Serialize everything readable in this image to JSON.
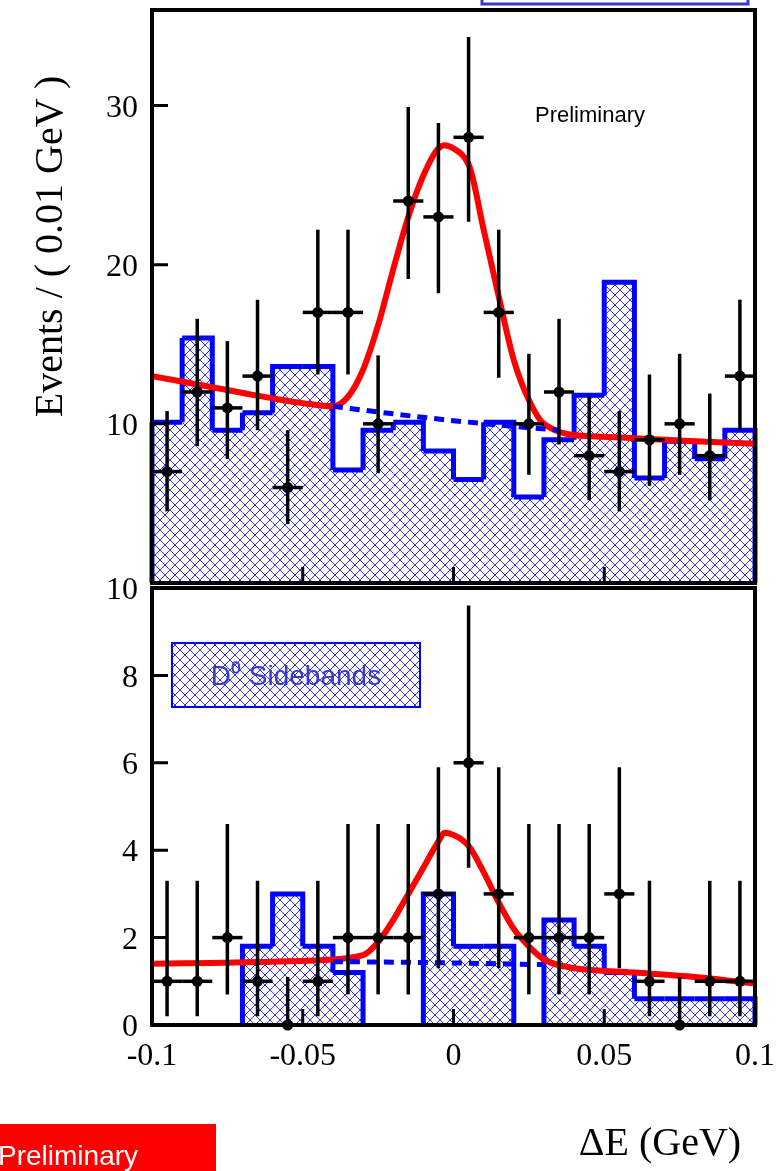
{
  "chart_data": [
    {
      "type": "scatter",
      "ylabel": "Events / ( 0.01 GeV )",
      "xlim": [
        -0.1,
        0.1
      ],
      "xticks": [
        -0.1,
        -0.05,
        0,
        0.05,
        0.1
      ],
      "ylim": [
        0,
        36
      ],
      "yticks": [
        10,
        20,
        30
      ],
      "tick_labels": "y",
      "annotations": [
        "Preliminary"
      ],
      "series": [
        {
          "type": "histogram",
          "color": "#0000ff",
          "bins": [
            -0.1,
            -0.09,
            -0.08,
            -0.07,
            -0.06,
            -0.05,
            -0.04,
            -0.03,
            -0.02,
            -0.01,
            0,
            0.01,
            0.02,
            0.03,
            0.04,
            0.05,
            0.06,
            0.07,
            0.08,
            0.09,
            0.1
          ],
          "values": [
            10.1,
            15.4,
            9.6,
            10.7,
            13.6,
            13.6,
            7.1,
            9.6,
            10.1,
            8.3,
            6.5,
            10.1,
            5.4,
            9.0,
            11.8,
            18.9,
            6.6,
            8.9,
            7.8,
            9.6
          ]
        },
        {
          "type": "scatter",
          "color": "#000000",
          "marker": "circle",
          "x": [
            -0.095,
            -0.085,
            -0.075,
            -0.065,
            -0.055,
            -0.045,
            -0.035,
            -0.025,
            -0.015,
            -0.005,
            0.005,
            0.015,
            0.025,
            0.035,
            0.045,
            0.055,
            0.065,
            0.075,
            0.085,
            0.095
          ],
          "values": [
            7,
            12,
            11,
            13,
            6,
            17,
            17,
            10,
            24,
            23,
            28,
            17,
            10,
            12,
            8,
            7,
            9,
            10,
            8,
            13
          ],
          "errors": [
            [
              4.5,
              10.8
            ],
            [
              8.6,
              16.6
            ],
            [
              7.8,
              15.2
            ],
            [
              9.6,
              17.8
            ],
            [
              3.7,
              9.6
            ],
            [
              13.1,
              22.2
            ],
            [
              13.1,
              22.2
            ],
            [
              6.9,
              14.3
            ],
            [
              19.1,
              29.9
            ],
            [
              18.2,
              28.9
            ],
            [
              22.7,
              34.3
            ],
            [
              12.9,
              22.2
            ],
            [
              6.8,
              14.4
            ],
            [
              8.7,
              16.6
            ],
            [
              5.2,
              11.7
            ],
            [
              4.5,
              10.8
            ],
            [
              6.1,
              13.1
            ],
            [
              6.8,
              14.4
            ],
            [
              5.2,
              11.9
            ],
            [
              9.6,
              17.8
            ]
          ],
          "xerrors": [
            0.005,
            0.005,
            0.005,
            0.005,
            0.005,
            0.005,
            0.005,
            0.005,
            0.005,
            0.005,
            0.005,
            0.005,
            0.005,
            0.005,
            0.005,
            0.005,
            0.005,
            0.005,
            0.005,
            0.005
          ]
        },
        {
          "type": "line",
          "color": "#ff0000",
          "x": [
            -0.1,
            -0.08,
            -0.06,
            -0.05,
            -0.04,
            -0.035,
            -0.03,
            -0.025,
            -0.02,
            -0.015,
            -0.01,
            -0.005,
            -0.003,
            0,
            0.005,
            0.01,
            0.015,
            0.02,
            0.025,
            0.03,
            0.04,
            0.06,
            0.08,
            0.1
          ],
          "values": [
            13.0,
            12.3,
            11.6,
            11.3,
            11.1,
            11.7,
            13.4,
            16.2,
            19.7,
            23.0,
            25.6,
            27.3,
            27.5,
            27.3,
            26.3,
            22.2,
            18.0,
            14.0,
            11.5,
            10.0,
            9.3,
            9.1,
            8.9,
            8.75
          ]
        },
        {
          "type": "line",
          "color": "#0000ff",
          "line_style": "dashed",
          "x": [
            -0.04,
            0,
            0.035
          ],
          "values": [
            11.1,
            10.2,
            9.6
          ]
        }
      ]
    },
    {
      "type": "scatter",
      "xlabel": "ΔE (GeV)",
      "xlim": [
        -0.1,
        0.1
      ],
      "xticks": [
        -0.1,
        -0.05,
        0,
        0.05,
        0.1
      ],
      "ylim": [
        0,
        10
      ],
      "yticks": [
        0,
        2,
        4,
        6,
        8,
        10
      ],
      "legend": "top left",
      "annotations": [
        "Preliminary"
      ],
      "series": [
        {
          "type": "histogram",
          "name": "D⁰ Sidebands",
          "color": "#0000ff",
          "bins": [
            -0.1,
            -0.09,
            -0.08,
            -0.07,
            -0.06,
            -0.05,
            -0.04,
            -0.03,
            -0.02,
            -0.01,
            0,
            0.01,
            0.02,
            0.03,
            0.04,
            0.05,
            0.06,
            0.07,
            0.08,
            0.09,
            0.1
          ],
          "values": [
            0,
            0,
            0,
            1.8,
            3.0,
            1.8,
            1.2,
            0,
            0,
            3.0,
            1.8,
            1.8,
            0,
            2.4,
            1.8,
            1.2,
            0.6,
            0.6,
            0.6,
            0.6
          ]
        },
        {
          "type": "scatter",
          "color": "#000000",
          "marker": "circle",
          "x": [
            -0.095,
            -0.085,
            -0.075,
            -0.065,
            -0.055,
            -0.045,
            -0.035,
            -0.025,
            -0.015,
            -0.005,
            0.005,
            0.015,
            0.025,
            0.035,
            0.045,
            0.055,
            0.065,
            0.075,
            0.085,
            0.095
          ],
          "values": [
            1,
            1,
            2,
            1,
            0,
            1,
            2,
            2,
            2,
            3,
            6,
            3,
            2,
            2,
            2,
            3,
            1,
            0,
            1,
            1
          ],
          "errors": [
            [
              0.2,
              3.3
            ],
            [
              0.2,
              3.3
            ],
            [
              0.7,
              4.6
            ],
            [
              0.2,
              3.3
            ],
            [
              0,
              1.1
            ],
            [
              0.2,
              3.3
            ],
            [
              0.7,
              4.6
            ],
            [
              0.7,
              4.6
            ],
            [
              0.7,
              4.6
            ],
            [
              1.3,
              5.9
            ],
            [
              3.6,
              9.6
            ],
            [
              1.3,
              5.9
            ],
            [
              0.7,
              4.6
            ],
            [
              0.7,
              4.6
            ],
            [
              0.7,
              4.6
            ],
            [
              1.3,
              5.9
            ],
            [
              0.2,
              3.3
            ],
            [
              0,
              1.1
            ],
            [
              0.2,
              3.3
            ],
            [
              0.2,
              3.3
            ]
          ],
          "xerrors": [
            0.005,
            0.005,
            0.005,
            0.005,
            0.005,
            0.005,
            0.005,
            0.005,
            0.005,
            0.005,
            0.005,
            0.005,
            0.005,
            0.005,
            0.005,
            0.005,
            0.005,
            0.005,
            0.005,
            0.005
          ]
        },
        {
          "type": "line",
          "color": "#ff0000",
          "x": [
            -0.1,
            -0.06,
            -0.04,
            -0.03,
            -0.025,
            -0.02,
            -0.015,
            -0.01,
            -0.005,
            -0.003,
            0,
            0.005,
            0.01,
            0.015,
            0.02,
            0.025,
            0.03,
            0.04,
            0.06,
            0.08,
            0.1
          ],
          "values": [
            1.4,
            1.45,
            1.5,
            1.6,
            1.9,
            2.4,
            3.0,
            3.6,
            4.2,
            4.4,
            4.35,
            4.1,
            3.5,
            2.8,
            2.2,
            1.8,
            1.5,
            1.3,
            1.2,
            1.1,
            0.95
          ]
        },
        {
          "type": "line",
          "color": "#0000ff",
          "line_style": "dashed",
          "x": [
            -0.04,
            0,
            0.03
          ],
          "values": [
            1.45,
            1.42,
            1.38
          ]
        }
      ]
    }
  ]
}
